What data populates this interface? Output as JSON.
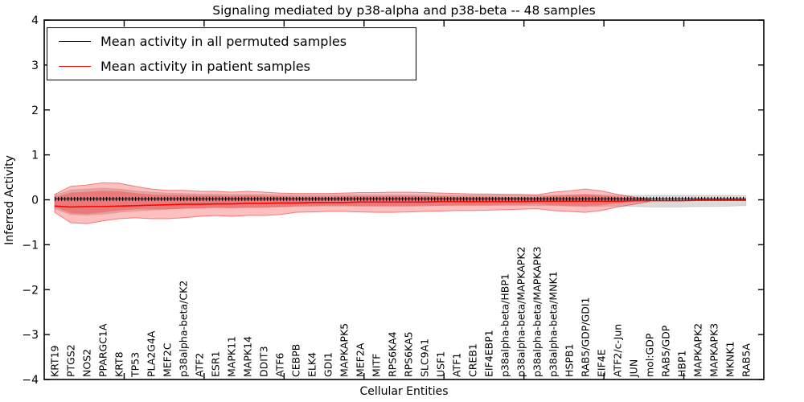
{
  "title": "Signaling mediated by p38-alpha and p38-beta -- 48 samples",
  "axes": {
    "ylabel": "Inferred Activity",
    "xlabel": "Cellular Entities",
    "ytick_labels": [
      "4",
      "3",
      "2",
      "1",
      "0",
      "−1",
      "−2",
      "−3",
      "−4"
    ],
    "ytick_values": [
      4,
      3,
      2,
      1,
      0,
      -1,
      -2,
      -3,
      -4
    ]
  },
  "legend": {
    "position": "upper left",
    "items": [
      {
        "label": "Mean activity in all permuted samples",
        "color": "#000000"
      },
      {
        "label": "Mean activity in patient samples",
        "color": "#ff0000"
      }
    ]
  },
  "colors": {
    "patient_line": "#ff0000",
    "permuted_line": "#000000",
    "patient_fill": "rgba(255,0,0,0.25)",
    "patient_fill_edge": "rgba(225,45,45,0.55)",
    "permuted_fill": "rgba(0,0,0,0.14)",
    "permuted_fill_edge": "rgba(0,0,0,0.10)"
  },
  "chart_data": {
    "type": "area",
    "title": "Signaling mediated by p38-alpha and p38-beta -- 48 samples",
    "xlabel": "Cellular Entities",
    "ylabel": "Inferred Activity",
    "ylim": [
      -4,
      4
    ],
    "grid": false,
    "legend_position": "upper left",
    "categories": [
      "KRT19",
      "PTGS2",
      "NOS2",
      "PPARGC1A",
      "KRT8",
      "TP53",
      "PLA2G4A",
      "MEF2C",
      "p38alpha-beta/CK2",
      "ATF2",
      "ESR1",
      "MAPK11",
      "MAPK14",
      "DDIT3",
      "ATF6",
      "CEBPB",
      "ELK4",
      "GDI1",
      "MAPKAPK5",
      "MEF2A",
      "MITF",
      "RPS6KA4",
      "RPS6KA5",
      "SLC9A1",
      "USF1",
      "ATF1",
      "CREB1",
      "EIF4EBP1",
      "p38alpha-beta/HBP1",
      "p38alpha-beta/MAPKAPK2",
      "p38alpha-beta/MAPKAPK3",
      "p38alpha-beta/MNK1",
      "HSPB1",
      "RAB5/GDP/GDI1",
      "EIF4E",
      "ATF2/c-Jun",
      "JUN",
      "mol:GDP",
      "RAB5/GDP",
      "HBP1",
      "MAPKAPK2",
      "MAPKAPK3",
      "MKNK1",
      "RAB5A"
    ],
    "series": [
      {
        "name": "Mean activity in all permuted samples",
        "role": "line",
        "values": [
          0.02,
          0.02,
          0.02,
          0.02,
          0.02,
          0.02,
          0.02,
          0.02,
          0.02,
          0.02,
          0.02,
          0.02,
          0.02,
          0.02,
          0.02,
          0.02,
          0.02,
          0.02,
          0.02,
          0.02,
          0.02,
          0.02,
          0.02,
          0.02,
          0.02,
          0.02,
          0.02,
          0.02,
          0.02,
          0.02,
          0.02,
          0.02,
          0.02,
          0.02,
          0.02,
          0.02,
          0.02,
          0.02,
          0.02,
          0.02,
          0.02,
          0.02,
          0.02,
          0.02
        ]
      },
      {
        "name": "Mean activity in patient samples",
        "role": "line",
        "values": [
          -0.14,
          -0.16,
          -0.15,
          -0.15,
          -0.14,
          -0.13,
          -0.12,
          -0.11,
          -0.1,
          -0.1,
          -0.09,
          -0.09,
          -0.08,
          -0.08,
          -0.07,
          -0.07,
          -0.06,
          -0.06,
          -0.06,
          -0.05,
          -0.05,
          -0.05,
          -0.05,
          -0.05,
          -0.04,
          -0.04,
          -0.04,
          -0.04,
          -0.04,
          -0.04,
          -0.03,
          -0.03,
          -0.03,
          -0.03,
          -0.03,
          -0.03,
          -0.02,
          -0.02,
          -0.02,
          -0.02,
          -0.01,
          -0.01,
          -0.01,
          -0.01
        ]
      },
      {
        "name": "Patient samples spread (outer band)",
        "role": "band",
        "upper": [
          0.12,
          0.3,
          0.33,
          0.38,
          0.37,
          0.3,
          0.24,
          0.21,
          0.21,
          0.19,
          0.19,
          0.17,
          0.19,
          0.17,
          0.15,
          0.14,
          0.14,
          0.14,
          0.15,
          0.16,
          0.16,
          0.17,
          0.17,
          0.16,
          0.15,
          0.14,
          0.13,
          0.13,
          0.12,
          0.12,
          0.11,
          0.17,
          0.2,
          0.24,
          0.2,
          0.12,
          0.06,
          0.02,
          null,
          null,
          null,
          null,
          null,
          null
        ],
        "lower": [
          -0.28,
          -0.51,
          -0.53,
          -0.47,
          -0.42,
          -0.4,
          -0.42,
          -0.42,
          -0.4,
          -0.37,
          -0.35,
          -0.37,
          -0.35,
          -0.35,
          -0.33,
          -0.28,
          -0.27,
          -0.26,
          -0.26,
          -0.27,
          -0.28,
          -0.28,
          -0.27,
          -0.26,
          -0.25,
          -0.24,
          -0.24,
          -0.23,
          -0.22,
          -0.21,
          -0.2,
          -0.24,
          -0.26,
          -0.28,
          -0.24,
          -0.16,
          -0.1,
          -0.04,
          null,
          null,
          null,
          null,
          null,
          null
        ]
      },
      {
        "name": "Patient samples spread (inner band)",
        "role": "band",
        "upper": [
          0.06,
          0.16,
          0.18,
          0.2,
          0.19,
          0.15,
          0.12,
          0.11,
          0.11,
          0.1,
          0.1,
          0.09,
          0.1,
          0.09,
          0.08,
          0.07,
          0.07,
          0.07,
          0.08,
          0.08,
          0.08,
          0.09,
          0.09,
          0.08,
          0.08,
          0.07,
          0.07,
          0.07,
          0.06,
          0.06,
          0.06,
          0.09,
          0.1,
          0.12,
          0.1,
          0.06,
          0.03,
          0.01,
          null,
          null,
          null,
          null,
          null,
          null
        ],
        "lower": [
          -0.16,
          -0.3,
          -0.32,
          -0.28,
          -0.24,
          -0.21,
          -0.21,
          -0.21,
          -0.2,
          -0.19,
          -0.18,
          -0.19,
          -0.18,
          -0.18,
          -0.17,
          -0.14,
          -0.14,
          -0.13,
          -0.13,
          -0.14,
          -0.14,
          -0.14,
          -0.14,
          -0.13,
          -0.13,
          -0.12,
          -0.12,
          -0.12,
          -0.11,
          -0.11,
          -0.1,
          -0.12,
          -0.13,
          -0.14,
          -0.12,
          -0.08,
          -0.05,
          -0.02,
          null,
          null,
          null,
          null,
          null,
          null
        ]
      },
      {
        "name": "Permuted samples spread",
        "role": "band",
        "upper": [
          0.1,
          0.22,
          0.24,
          0.26,
          0.24,
          0.2,
          0.17,
          0.15,
          0.14,
          0.13,
          0.13,
          0.12,
          0.12,
          0.12,
          0.11,
          0.11,
          0.11,
          0.11,
          0.11,
          0.11,
          0.11,
          0.11,
          0.11,
          0.11,
          0.1,
          0.1,
          0.1,
          0.1,
          0.1,
          0.1,
          0.1,
          0.1,
          0.11,
          0.12,
          0.11,
          0.1,
          0.1,
          0.1,
          0.1,
          0.1,
          0.1,
          0.1,
          0.1,
          0.09
        ],
        "lower": [
          -0.2,
          -0.33,
          -0.34,
          -0.32,
          -0.28,
          -0.25,
          -0.23,
          -0.21,
          -0.19,
          -0.18,
          -0.17,
          -0.17,
          -0.16,
          -0.16,
          -0.15,
          -0.15,
          -0.14,
          -0.14,
          -0.14,
          -0.14,
          -0.14,
          -0.14,
          -0.14,
          -0.14,
          -0.13,
          -0.13,
          -0.13,
          -0.13,
          -0.13,
          -0.13,
          -0.13,
          -0.13,
          -0.14,
          -0.15,
          -0.14,
          -0.14,
          -0.15,
          -0.16,
          -0.16,
          -0.16,
          -0.15,
          -0.15,
          -0.14,
          -0.13
        ]
      }
    ]
  }
}
